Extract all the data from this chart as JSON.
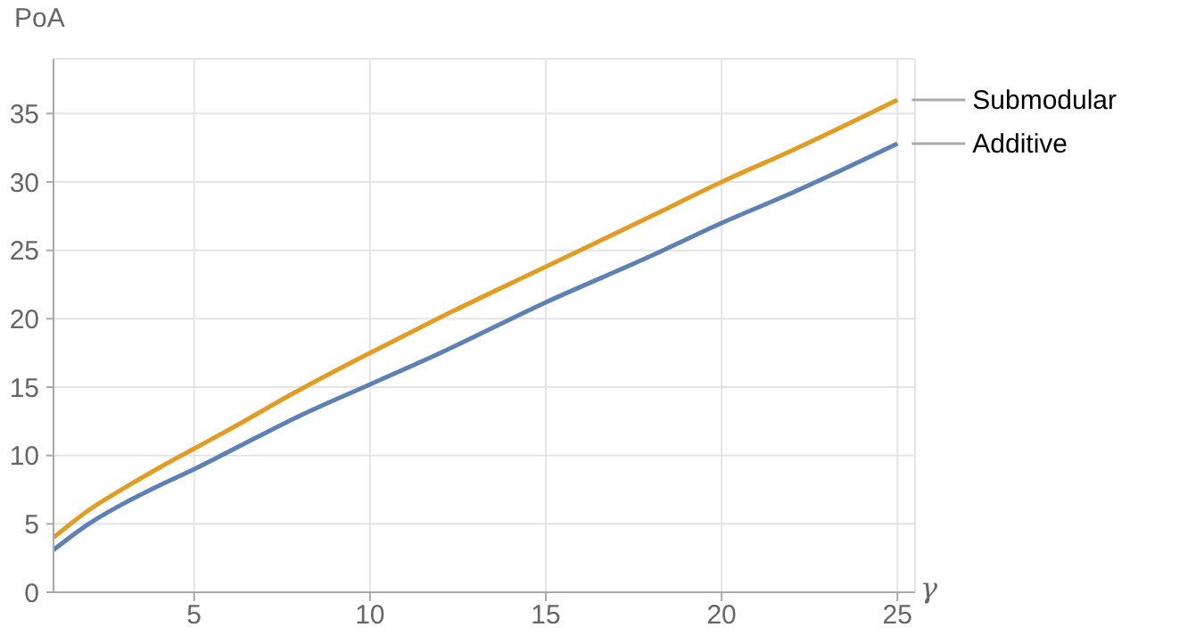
{
  "chart_data": {
    "type": "line",
    "xlabel": "γ",
    "ylabel": "PoA",
    "xlim": [
      1,
      25.5
    ],
    "xticks": [
      5,
      10,
      15,
      20,
      25
    ],
    "ylim": [
      0,
      39
    ],
    "yticks": [
      0,
      5,
      10,
      15,
      20,
      25,
      30,
      35
    ],
    "grid": true,
    "legend": "right",
    "marker": "none",
    "line_style": "solid",
    "x": [
      1,
      2,
      3,
      4,
      5,
      6,
      8,
      10,
      12,
      15,
      18,
      20,
      22,
      25
    ],
    "series": [
      {
        "name": "Submodular",
        "color": "#e19c24",
        "values": [
          4.0,
          6.0,
          7.6,
          9.1,
          10.5,
          11.9,
          14.8,
          17.5,
          20.1,
          23.8,
          27.5,
          30.0,
          32.3,
          36.0
        ]
      },
      {
        "name": "Additive",
        "color": "#5e81b5",
        "values": [
          3.1,
          5.0,
          6.5,
          7.8,
          9.0,
          10.3,
          12.9,
          15.2,
          17.5,
          21.2,
          24.6,
          27.0,
          29.2,
          32.8
        ]
      }
    ]
  }
}
